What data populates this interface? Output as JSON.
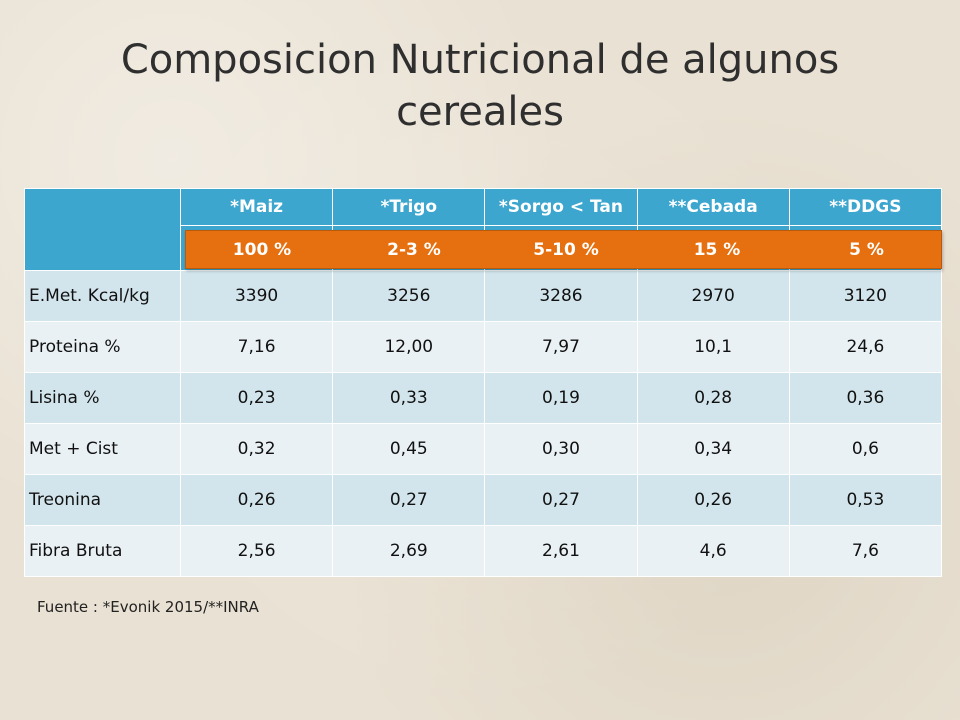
{
  "title": {
    "line1": "Composicion Nutricional de algunos",
    "line2": "cereales"
  },
  "table": {
    "columns": [
      "*Maiz",
      "*Trigo",
      "*Sorgo < Tan",
      "**Cebada",
      "**DDGS"
    ],
    "percentages": [
      "100 %",
      "2-3 %",
      "5-10 %",
      "15 %",
      "5 %"
    ],
    "rows": [
      {
        "label": "E.Met. Kcal/kg",
        "values": [
          "3390",
          "3256",
          "3286",
          "2970",
          "3120"
        ]
      },
      {
        "label": "Proteina %",
        "values": [
          "7,16",
          "12,00",
          "7,97",
          "10,1",
          "24,6"
        ]
      },
      {
        "label": "Lisina %",
        "values": [
          "0,23",
          "0,33",
          "0,19",
          "0,28",
          "0,36"
        ]
      },
      {
        "label": "Met + Cist",
        "values": [
          "0,32",
          "0,45",
          "0,30",
          "0,34",
          "0,6"
        ]
      },
      {
        "label": "Treonina",
        "values": [
          "0,26",
          "0,27",
          "0,27",
          "0,26",
          "0,53"
        ]
      },
      {
        "label": "Fibra Bruta",
        "values": [
          "2,56",
          "2,69",
          "2,61",
          "4,6",
          "7,6"
        ]
      }
    ]
  },
  "source": "Fuente : *Evonik 2015/**INRA",
  "colors": {
    "header_blue": "#3da6cf",
    "row_dark": "#d3e5ec",
    "row_light": "#e9f1f5",
    "highlight_orange": "#e6700f",
    "background": "#e9e1d3"
  }
}
